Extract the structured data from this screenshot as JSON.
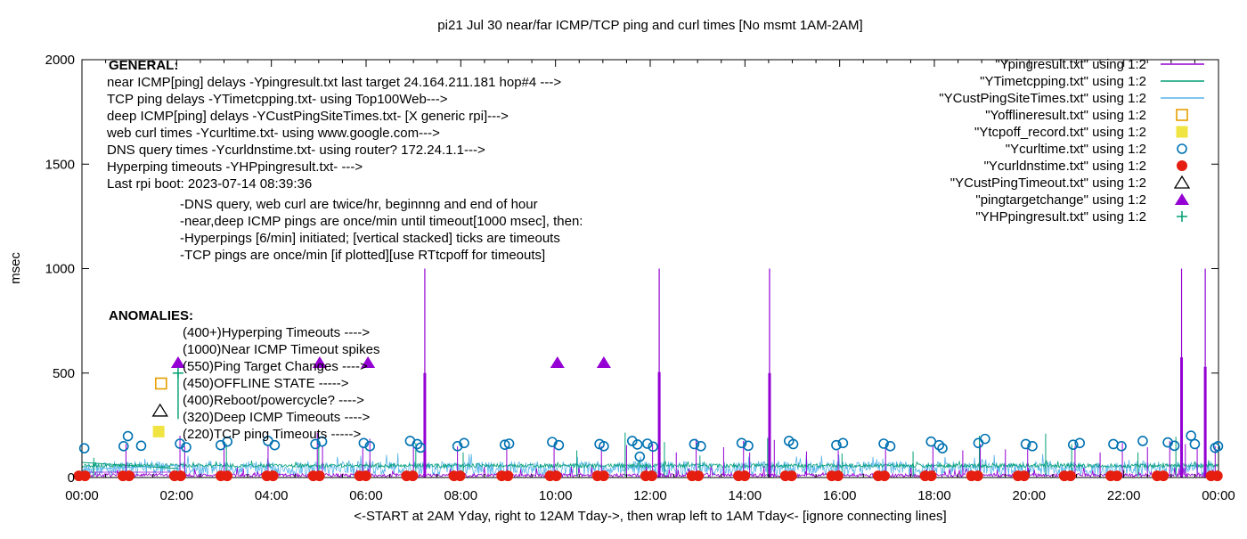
{
  "title": "pi21 Jul 30  near/far ICMP/TCP ping and curl times [No msmt 1AM-2AM]",
  "y_axis": {
    "label": "msec",
    "ticks": [
      0,
      500,
      1000,
      1500,
      2000
    ],
    "range": [
      0,
      2000
    ]
  },
  "x_axis": {
    "tick_labels": [
      "00:00",
      "02:00",
      "04:00",
      "06:00",
      "08:00",
      "10:00",
      "12:00",
      "14:00",
      "16:00",
      "18:00",
      "20:00",
      "22:00",
      "00:00"
    ],
    "hours_span": 24,
    "minor_tick_minutes": 30,
    "caption": "<-START at 2AM Yday, right to 12AM Tday->, then wrap left to 1AM Tday<- [ignore connecting lines]"
  },
  "legend": {
    "entries": [
      {
        "label": "\"Ypingresult.txt\" using 1:2",
        "swatch": "line",
        "color": "#9400d3"
      },
      {
        "label": "\"YTimetcpping.txt\" using 1:2",
        "swatch": "line",
        "color": "#009e73"
      },
      {
        "label": "\"YCustPingSiteTimes.txt\" using 1:2",
        "swatch": "line",
        "color": "#56b4e9"
      },
      {
        "label": "\"Yofflineresult.txt\" using 1:2",
        "swatch": "open-square",
        "color": "#e69f00"
      },
      {
        "label": "\"Ytcpoff_record.txt\" using 1:2",
        "swatch": "filled-square",
        "color": "#f0e442"
      },
      {
        "label": "\"Ycurltime.txt\" using 1:2",
        "swatch": "open-circle",
        "color": "#0072b2"
      },
      {
        "label": "\"Ycurldnstime.txt\" using 1:2",
        "swatch": "filled-circle",
        "color": "#e51e10"
      },
      {
        "label": "\"YCustPingTimeout.txt\" using 1:2",
        "swatch": "open-triangle",
        "color": "#000000"
      },
      {
        "label": "\"pingtargetchange\" using 1:2",
        "swatch": "filled-triangle",
        "color": "#9400d3"
      },
      {
        "label": "\"YHPpingresult.txt\" using 1:2",
        "swatch": "plus",
        "color": "#009e73"
      }
    ]
  },
  "annotations": {
    "general": {
      "heading": "GENERAL:",
      "lines": [
        "near ICMP[ping] delays -Ypingresult.txt last target 24.164.211.181 hop#4 --->",
        "TCP ping delays -YTimetcpping.txt- using Top100Web--->",
        "deep ICMP[ping] delays -YCustPingSiteTimes.txt- [X generic rpi]--->",
        "web curl times -Ycurltime.txt- using www.google.com--->",
        "DNS query times -Ycurldnstime.txt- using router? 172.24.1.1--->",
        "Hyperping timeouts -YHPpingresult.txt- --->",
        "Last rpi boot: 2023-07-14 08:39:36"
      ],
      "sub_lines": [
        "-DNS query, web curl are twice/hr, beginnng and end of hour",
        "-near,deep ICMP pings are once/min until timeout[1000 msec], then:",
        " -Hyperpings [6/min] initiated; [vertical stacked] ticks are timeouts",
        "-TCP pings are once/min [if plotted][use RTtcpoff for timeouts]"
      ]
    },
    "anomalies": {
      "heading": "ANOMALIES:",
      "lines": [
        "(400+)Hyperping Timeouts ---->",
        "(1000)Near ICMP Timeout spikes",
        "(550)Ping Target Changes ---->",
        "(450)OFFLINE STATE ----->",
        "(400)Reboot/powercycle? ---->",
        "(320)Deep ICMP Timeouts ---->",
        "(220)TCP ping Timeouts ----->"
      ]
    }
  },
  "chart_data": {
    "type": "line",
    "title": "pi21 Jul 30  near/far ICMP/TCP ping and curl times [No msmt 1AM-2AM]",
    "xlabel_hours": [
      0,
      24
    ],
    "ylabel": "msec",
    "ylim": [
      0,
      2000
    ],
    "grid": false,
    "legend_position": "top-right",
    "no_measurement_window": "01:00-02:00",
    "series": [
      {
        "key": "near_icmp",
        "name": "Ypingresult.txt near ICMP ping delay",
        "color": "#9400d3",
        "style": "noisy-line",
        "noise": {
          "seed": 7,
          "base": 3,
          "amp": 16,
          "spike_prob": 0.05,
          "spike_amp": 40
        },
        "spikes": [
          [
            0.93,
            160
          ],
          [
            2.07,
            200
          ],
          [
            2.17,
            150
          ],
          [
            3.0,
            160
          ],
          [
            3.93,
            150
          ],
          [
            4.97,
            215
          ],
          [
            5.08,
            150
          ],
          [
            5.93,
            150
          ],
          [
            6.08,
            185
          ],
          [
            7.0,
            150
          ],
          [
            7.93,
            150
          ],
          [
            8.97,
            150
          ],
          [
            9.97,
            145
          ],
          [
            10.97,
            150
          ],
          [
            11.5,
            155
          ],
          [
            12.05,
            160
          ],
          [
            12.55,
            120
          ],
          [
            12.97,
            185
          ],
          [
            13.55,
            145
          ],
          [
            13.97,
            175
          ],
          [
            14.1,
            120
          ],
          [
            14.62,
            180
          ],
          [
            15.3,
            125
          ],
          [
            15.97,
            130
          ],
          [
            16.97,
            140
          ],
          [
            17.97,
            150
          ],
          [
            18.6,
            130
          ],
          [
            18.97,
            160
          ],
          [
            19.5,
            135
          ],
          [
            19.97,
            140
          ],
          [
            20.97,
            150
          ],
          [
            21.5,
            120
          ],
          [
            21.97,
            165
          ],
          [
            22.5,
            145
          ],
          [
            22.97,
            175
          ],
          [
            23.3,
            160
          ],
          [
            23.55,
            140
          ],
          [
            23.93,
            150
          ]
        ],
        "timeout_spikes": [
          [
            7.24,
            1000,
            500
          ],
          [
            12.19,
            1000,
            505
          ],
          [
            14.52,
            1000,
            500
          ],
          [
            23.22,
            1000,
            575
          ],
          [
            23.72,
            1000,
            530
          ]
        ]
      },
      {
        "key": "tcp_ping",
        "name": "YTimetcpping.txt TCP ping delay",
        "color": "#009e73",
        "style": "noisy-line",
        "noise": {
          "seed": 13,
          "base": 48,
          "amp": 18,
          "spike_prob": 0.03,
          "spike_amp": 25
        },
        "spikes": [
          [
            0.25,
            95
          ],
          [
            3.05,
            160
          ],
          [
            5.0,
            165
          ],
          [
            7.05,
            165
          ],
          [
            8.05,
            120
          ],
          [
            10.45,
            130
          ],
          [
            11.47,
            215
          ],
          [
            12.3,
            170
          ],
          [
            13.05,
            105
          ],
          [
            14.48,
            190
          ],
          [
            16.05,
            115
          ],
          [
            17.55,
            125
          ],
          [
            18.95,
            200
          ],
          [
            20.35,
            210
          ],
          [
            20.9,
            160
          ],
          [
            22.3,
            120
          ],
          [
            23.1,
            195
          ]
        ],
        "timeout_spikes": []
      },
      {
        "key": "deep_icmp",
        "name": "YCustPingSiteTimes.txt deep ICMP ping delay",
        "color": "#56b4e9",
        "style": "noisy-line",
        "noise": {
          "seed": 29,
          "base": 8,
          "amp": 70,
          "spike_prob": 0.08,
          "spike_amp": 45
        },
        "spikes": [],
        "timeout_spikes": []
      },
      {
        "key": "curl",
        "name": "Ycurltime.txt web curl times",
        "color": "#0072b2",
        "style": "open-circle",
        "points": [
          [
            0.05,
            140
          ],
          [
            0.88,
            150
          ],
          [
            0.97,
            198
          ],
          [
            1.25,
            152
          ],
          [
            2.07,
            162
          ],
          [
            2.2,
            145
          ],
          [
            2.93,
            155
          ],
          [
            3.07,
            172
          ],
          [
            3.93,
            175
          ],
          [
            4.07,
            155
          ],
          [
            4.93,
            160
          ],
          [
            5.07,
            172
          ],
          [
            5.95,
            165
          ],
          [
            6.08,
            150
          ],
          [
            6.93,
            175
          ],
          [
            7.08,
            160
          ],
          [
            7.15,
            143
          ],
          [
            7.93,
            150
          ],
          [
            8.07,
            165
          ],
          [
            8.93,
            157
          ],
          [
            9.02,
            162
          ],
          [
            9.93,
            170
          ],
          [
            10.07,
            155
          ],
          [
            10.93,
            160
          ],
          [
            11.02,
            150
          ],
          [
            11.62,
            175
          ],
          [
            11.73,
            158
          ],
          [
            11.78,
            100
          ],
          [
            11.94,
            162
          ],
          [
            12.06,
            148
          ],
          [
            12.93,
            160
          ],
          [
            13.07,
            150
          ],
          [
            13.93,
            165
          ],
          [
            14.07,
            152
          ],
          [
            14.93,
            175
          ],
          [
            15.02,
            160
          ],
          [
            15.93,
            155
          ],
          [
            16.07,
            165
          ],
          [
            16.93,
            162
          ],
          [
            17.07,
            150
          ],
          [
            17.93,
            172
          ],
          [
            18.1,
            155
          ],
          [
            18.17,
            140
          ],
          [
            18.93,
            165
          ],
          [
            19.07,
            185
          ],
          [
            19.93,
            160
          ],
          [
            20.07,
            150
          ],
          [
            20.93,
            157
          ],
          [
            21.07,
            165
          ],
          [
            21.78,
            160
          ],
          [
            21.95,
            150
          ],
          [
            22.4,
            175
          ],
          [
            22.93,
            168
          ],
          [
            23.07,
            152
          ],
          [
            23.42,
            200
          ],
          [
            23.5,
            160
          ],
          [
            23.93,
            142
          ],
          [
            23.99,
            150
          ]
        ]
      },
      {
        "key": "dns",
        "name": "Ycurldnstime.txt DNS query times",
        "color": "#e51e10",
        "style": "dot-pair",
        "y_value": 8,
        "hours": [
          0.0,
          0.93,
          2.02,
          3.0,
          3.97,
          4.95,
          5.93,
          6.92,
          7.92,
          8.93,
          9.95,
          10.95,
          11.97,
          12.95,
          13.93,
          14.92,
          15.9,
          16.88,
          17.87,
          18.85,
          19.83,
          20.81,
          21.79,
          22.77,
          23.91
        ]
      },
      {
        "key": "offline",
        "name": "Yofflineresult.txt OFFLINE STATE",
        "color": "#e69f00",
        "style": "open-square",
        "points": [
          [
            1.67,
            450
          ]
        ]
      },
      {
        "key": "tcpoff",
        "name": "Ytcpoff_record.txt TCP ping timeouts",
        "color": "#f0e442",
        "style": "filled-square",
        "points": [
          [
            1.62,
            220
          ]
        ]
      },
      {
        "key": "deep_timeout",
        "name": "YCustPingTimeout.txt deep ICMP timeouts",
        "color": "#000000",
        "style": "open-triangle",
        "points": [
          [
            1.65,
            320
          ]
        ]
      },
      {
        "key": "ping_target_change",
        "name": "pingtargetchange",
        "color": "#9400d3",
        "style": "filled-triangle",
        "points": [
          [
            2.03,
            550
          ],
          [
            5.02,
            550
          ],
          [
            6.04,
            550
          ],
          [
            10.04,
            550
          ],
          [
            11.02,
            550
          ]
        ]
      },
      {
        "key": "hyperping",
        "name": "YHPpingresult.txt hyperping timeouts",
        "color": "#009e73",
        "style": "plus",
        "points": [
          [
            2.03,
            500
          ]
        ],
        "stacks": [
          [
            2.03,
            280,
            500
          ]
        ]
      }
    ],
    "ignore_connecting_lines": true
  },
  "colors": {
    "near_icmp": "#9400d3",
    "tcp_ping": "#009e73",
    "deep_icmp": "#56b4e9",
    "offline": "#e69f00",
    "tcpoff": "#f0e442",
    "curl": "#0072b2",
    "dns": "#e51e10",
    "deep_timeout": "#000000",
    "ping_target_change": "#9400d3",
    "hyperping": "#009e73",
    "background": "#ffffff",
    "foreground": "#000000"
  }
}
